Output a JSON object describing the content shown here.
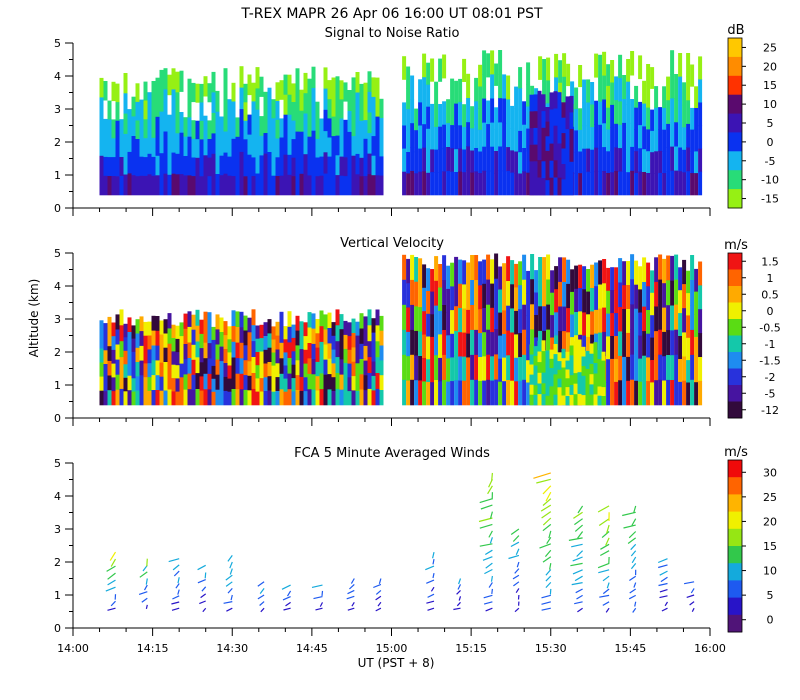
{
  "title": "T-REX  MAPR 26 Apr 06  16:00 UT  08:01  PST",
  "xlabel": "UT  (PST + 8)",
  "ylabel": "Altitude (km)",
  "x_ticks": [
    "14:00",
    "14:15",
    "14:30",
    "14:45",
    "15:00",
    "15:15",
    "15:30",
    "15:45",
    "16:00"
  ],
  "y_ticks": [
    "0",
    "1",
    "2",
    "3",
    "4",
    "5"
  ],
  "chart_data": [
    {
      "type": "heatmap",
      "title": "Signal to Noise Ratio",
      "xlabel": "UT  (PST + 8)",
      "ylabel": "",
      "xlim": [
        "14:00",
        "16:00"
      ],
      "ylim": [
        0,
        5
      ],
      "data_gap_ut": [
        "14:58",
        "15:02"
      ],
      "colorbar": {
        "unit": "dB",
        "levels": [
          "25",
          "20",
          "15",
          "10",
          "5",
          "0",
          "-5",
          "-10",
          "-15"
        ],
        "colors": [
          "#ffc800",
          "#ff8c00",
          "#ff3200",
          "#5a0a6e",
          "#3c14b4",
          "#0a32f0",
          "#14b4f0",
          "#28dc78",
          "#96f014"
        ]
      },
      "features": [
        {
          "ut_start": "14:05",
          "ut_end": "14:58",
          "alt_min": 0.4,
          "alt_max": 4.3,
          "description_level": "-15"
        },
        {
          "ut_start": "15:02",
          "ut_end": "15:58",
          "alt_min": 0.4,
          "alt_max": 4.8,
          "description_level": "-15"
        },
        {
          "ut_start": "15:26",
          "ut_end": "15:34",
          "alt_min": 0.4,
          "alt_max": 3.6,
          "description_level": "10"
        }
      ]
    },
    {
      "type": "heatmap",
      "title": "Vertical Velocity",
      "xlabel": "UT  (PST + 8)",
      "ylabel": "Altitude (km)",
      "xlim": [
        "14:00",
        "16:00"
      ],
      "ylim": [
        0,
        5
      ],
      "data_gap_ut": [
        "14:58",
        "15:02"
      ],
      "colorbar": {
        "unit": "m/s",
        "levels": [
          "1.5",
          "1",
          "0.5",
          "0",
          "-0.5",
          "-1",
          "-1.5",
          "-2",
          "-5",
          "-12"
        ],
        "colors": [
          "#f01414",
          "#ff6400",
          "#ffaa00",
          "#f0f000",
          "#5adc14",
          "#14c8aa",
          "#1e8cf0",
          "#2832dc",
          "#4614a0",
          "#320a3c"
        ]
      },
      "features": [
        {
          "ut_start": "14:05",
          "ut_end": "14:58",
          "alt_min": 0.4,
          "alt_max": 3.3
        },
        {
          "ut_start": "15:02",
          "ut_end": "15:58",
          "alt_min": 0.4,
          "alt_max": 5.0
        },
        {
          "ut_start": "15:26",
          "ut_end": "15:40",
          "alt_min": 0.4,
          "alt_max": 2.5,
          "description_level": "-5"
        }
      ]
    },
    {
      "type": "scatter",
      "title": "FCA 5 Minute Averaged Winds",
      "xlabel": "UT  (PST + 8)",
      "ylabel": "",
      "xlim": [
        "14:00",
        "16:00"
      ],
      "ylim": [
        0,
        5
      ],
      "colorbar": {
        "unit": "m/s",
        "levels": [
          "30",
          "25",
          "20",
          "15",
          "10",
          "5",
          "0"
        ],
        "colors": [
          "#f00a0a",
          "#ff6400",
          "#ffb400",
          "#f0f000",
          "#96e614",
          "#32c84b",
          "#14aadc",
          "#1e5af0",
          "#2814c8",
          "#501478"
        ]
      },
      "profiles": [
        {
          "ut": "14:08",
          "alt_min": 0.6,
          "alt_max": 2.3,
          "speed_max": 18
        },
        {
          "ut": "14:14",
          "alt_min": 0.7,
          "alt_max": 2.1,
          "speed_max": 14
        },
        {
          "ut": "14:20",
          "alt_min": 0.6,
          "alt_max": 2.1,
          "speed_max": 12
        },
        {
          "ut": "14:25",
          "alt_min": 0.6,
          "alt_max": 1.9,
          "speed_max": 10
        },
        {
          "ut": "14:30",
          "alt_min": 0.6,
          "alt_max": 2.2,
          "speed_max": 14
        },
        {
          "ut": "14:36",
          "alt_min": 0.6,
          "alt_max": 1.4,
          "speed_max": 10
        },
        {
          "ut": "14:41",
          "alt_min": 0.6,
          "alt_max": 1.3,
          "speed_max": 10
        },
        {
          "ut": "14:47",
          "alt_min": 0.6,
          "alt_max": 1.3,
          "speed_max": 9
        },
        {
          "ut": "14:53",
          "alt_min": 0.6,
          "alt_max": 1.5,
          "speed_max": 9
        },
        {
          "ut": "14:58",
          "alt_min": 0.6,
          "alt_max": 1.5,
          "speed_max": 9
        },
        {
          "ut": "15:08",
          "alt_min": 0.6,
          "alt_max": 2.3,
          "speed_max": 10
        },
        {
          "ut": "15:13",
          "alt_min": 0.6,
          "alt_max": 1.5,
          "speed_max": 8
        },
        {
          "ut": "15:19",
          "alt_min": 0.6,
          "alt_max": 4.7,
          "speed_max": 18
        },
        {
          "ut": "15:24",
          "alt_min": 0.6,
          "alt_max": 3.0,
          "speed_max": 12
        },
        {
          "ut": "15:30",
          "alt_min": 0.6,
          "alt_max": 4.7,
          "speed_max": 22
        },
        {
          "ut": "15:36",
          "alt_min": 0.6,
          "alt_max": 3.7,
          "speed_max": 18
        },
        {
          "ut": "15:41",
          "alt_min": 0.6,
          "alt_max": 3.7,
          "speed_max": 20
        },
        {
          "ut": "15:46",
          "alt_min": 0.6,
          "alt_max": 3.7,
          "speed_max": 16
        },
        {
          "ut": "15:52",
          "alt_min": 0.6,
          "alt_max": 2.1,
          "speed_max": 10
        },
        {
          "ut": "15:57",
          "alt_min": 0.6,
          "alt_max": 1.4,
          "speed_max": 8
        }
      ]
    }
  ]
}
